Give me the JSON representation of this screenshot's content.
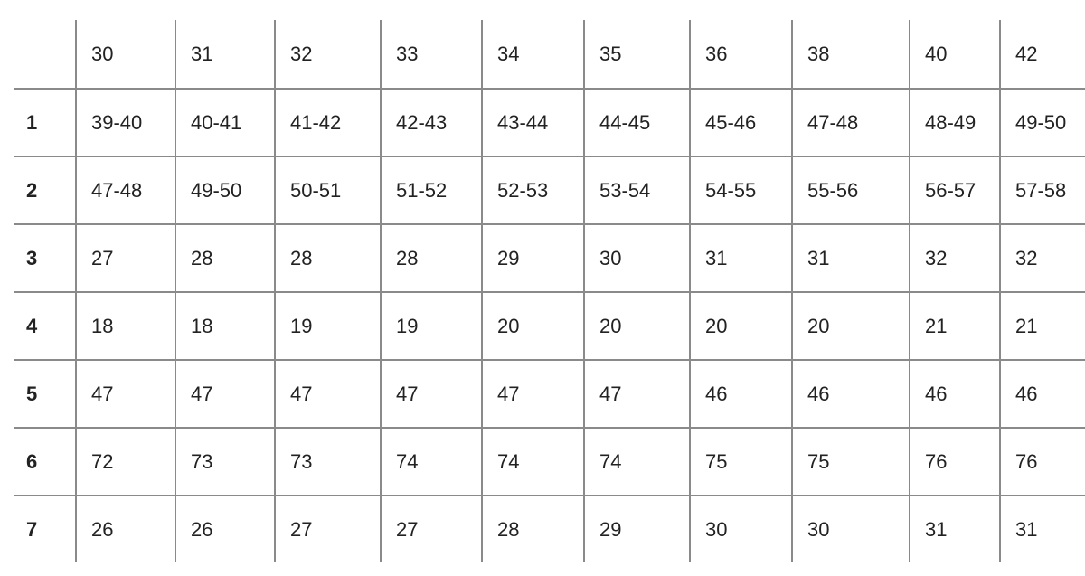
{
  "table": {
    "header": [
      "",
      "30",
      "31",
      "32",
      "33",
      "34",
      "35",
      "36",
      "38",
      "40",
      "42"
    ],
    "rows": [
      [
        "1",
        "39-40",
        "40-41",
        "41-42",
        "42-43",
        "43-44",
        "44-45",
        "45-46",
        "47-48",
        "48-49",
        "49-50"
      ],
      [
        "2",
        "47-48",
        "49-50",
        "50-51",
        "51-52",
        "52-53",
        "53-54",
        "54-55",
        "55-56",
        "56-57",
        "57-58"
      ],
      [
        "3",
        "27",
        "28",
        "28",
        "28",
        "29",
        "30",
        "31",
        "31",
        "32",
        "32"
      ],
      [
        "4",
        "18",
        "18",
        "19",
        "19",
        "20",
        "20",
        "20",
        "20",
        "21",
        "21"
      ],
      [
        "5",
        "47",
        "47",
        "47",
        "47",
        "47",
        "47",
        "46",
        "46",
        "46",
        "46"
      ],
      [
        "6",
        "72",
        "73",
        "73",
        "74",
        "74",
        "74",
        "75",
        "75",
        "76",
        "76"
      ],
      [
        "7",
        "26",
        "26",
        "27",
        "27",
        "28",
        "29",
        "30",
        "30",
        "31",
        "31"
      ]
    ]
  }
}
